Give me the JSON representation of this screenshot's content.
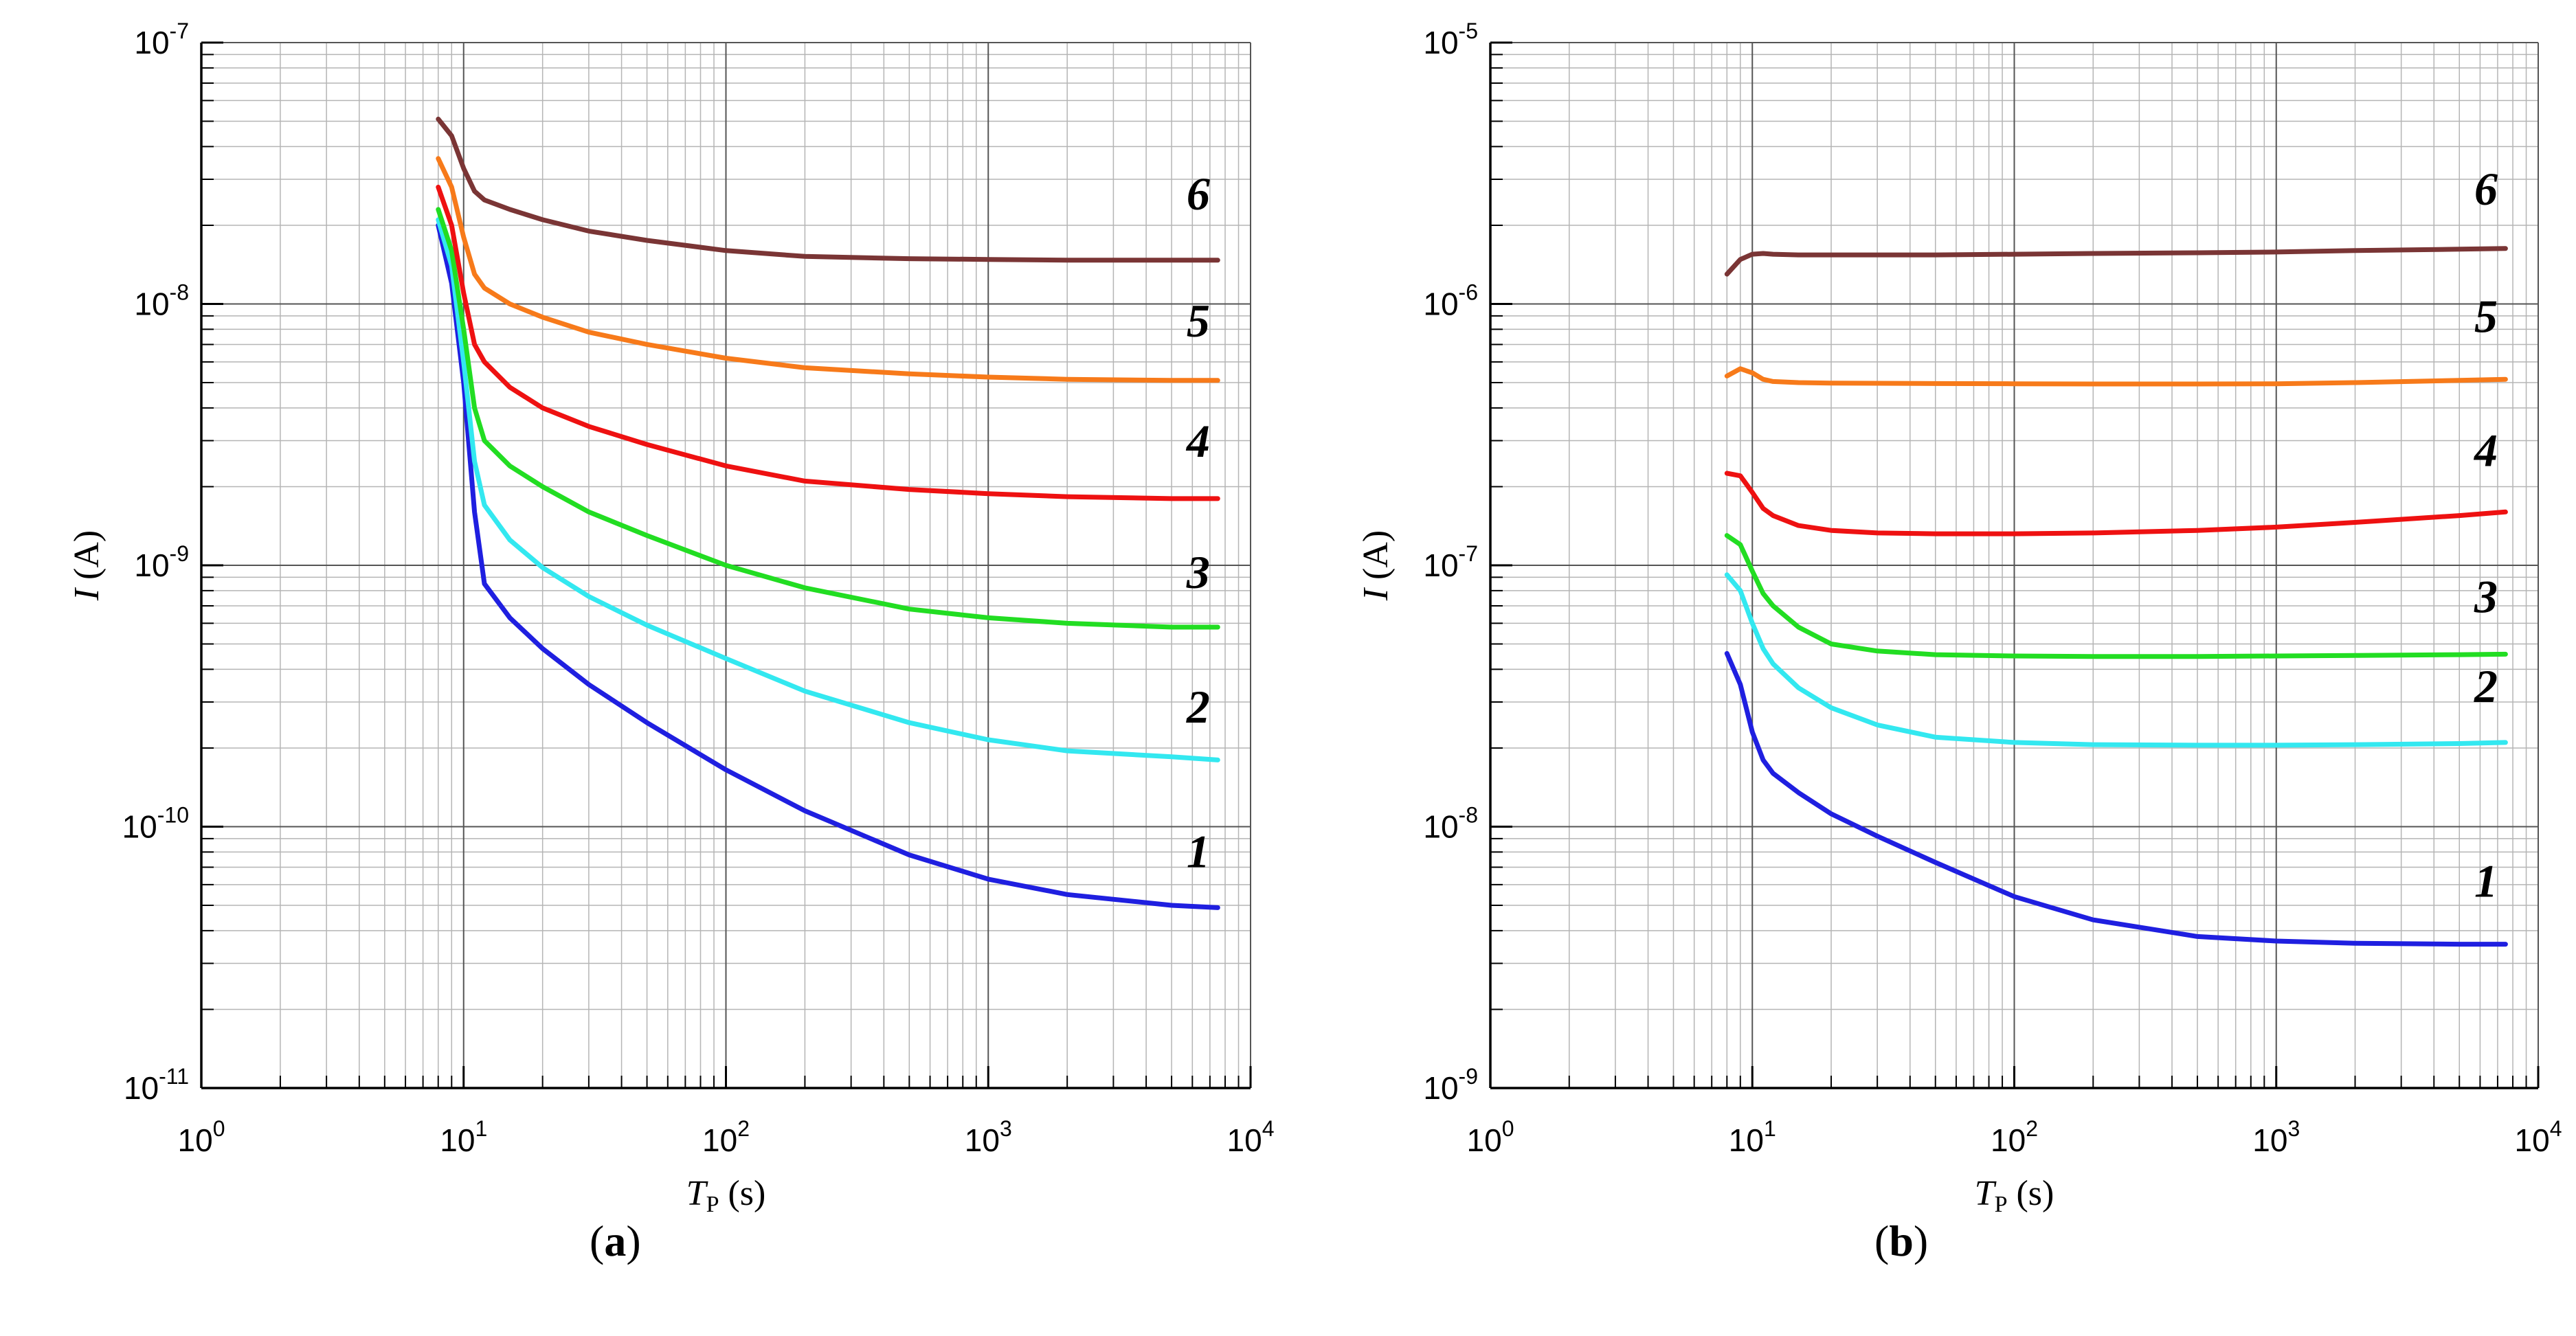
{
  "chart_data": [
    {
      "type": "line",
      "panel_label": "a",
      "xlabel": {
        "main": "T",
        "sub": "P",
        "unit": " (s)"
      },
      "ylabel": {
        "main": "I",
        "unit": " (A)"
      },
      "xscale": "log",
      "yscale": "log",
      "xlim": [
        1,
        10000
      ],
      "ylim": [
        1e-11,
        1e-07
      ],
      "x_ticks": [
        {
          "base": "10",
          "exp": "0"
        },
        {
          "base": "10",
          "exp": "1"
        },
        {
          "base": "10",
          "exp": "2"
        },
        {
          "base": "10",
          "exp": "3"
        },
        {
          "base": "10",
          "exp": "4"
        }
      ],
      "y_ticks": [
        {
          "base": "10",
          "exp": "-11"
        },
        {
          "base": "10",
          "exp": "-10"
        },
        {
          "base": "10",
          "exp": "-9"
        },
        {
          "base": "10",
          "exp": "-8"
        },
        {
          "base": "10",
          "exp": "-7"
        }
      ],
      "grid": true,
      "series": [
        {
          "name": "1",
          "color": "#1f1fe0",
          "x": [
            8,
            9,
            10,
            11,
            12,
            15,
            20,
            30,
            50,
            100,
            200,
            500,
            1000,
            2000,
            5000,
            7500
          ],
          "y": [
            2e-08,
            1.2e-08,
            5e-09,
            1.6e-09,
            8.5e-10,
            6.3e-10,
            4.8e-10,
            3.5e-10,
            2.5e-10,
            1.65e-10,
            1.15e-10,
            7.8e-11,
            6.3e-11,
            5.5e-11,
            5e-11,
            4.9e-11
          ]
        },
        {
          "name": "2",
          "color": "#33e8f0",
          "x": [
            8,
            9,
            10,
            11,
            12,
            15,
            20,
            30,
            50,
            100,
            200,
            500,
            1000,
            2000,
            5000,
            7500
          ],
          "y": [
            2.1e-08,
            1.4e-08,
            6e-09,
            2.5e-09,
            1.7e-09,
            1.25e-09,
            9.8e-10,
            7.6e-10,
            5.9e-10,
            4.4e-10,
            3.3e-10,
            2.5e-10,
            2.15e-10,
            1.95e-10,
            1.85e-10,
            1.8e-10
          ]
        },
        {
          "name": "3",
          "color": "#22dd22",
          "x": [
            8,
            9,
            10,
            11,
            12,
            15,
            20,
            30,
            50,
            100,
            200,
            500,
            1000,
            2000,
            5000,
            7500
          ],
          "y": [
            2.3e-08,
            1.6e-08,
            8e-09,
            4e-09,
            3e-09,
            2.4e-09,
            2e-09,
            1.6e-09,
            1.3e-09,
            1e-09,
            8.2e-10,
            6.8e-10,
            6.3e-10,
            6e-10,
            5.8e-10,
            5.8e-10
          ]
        },
        {
          "name": "4",
          "color": "#ee1111",
          "x": [
            8,
            9,
            10,
            11,
            12,
            15,
            20,
            30,
            50,
            100,
            200,
            500,
            1000,
            2000,
            5000,
            7500
          ],
          "y": [
            2.8e-08,
            2e-08,
            1.1e-08,
            7e-09,
            6e-09,
            4.8e-09,
            4e-09,
            3.4e-09,
            2.9e-09,
            2.4e-09,
            2.1e-09,
            1.95e-09,
            1.88e-09,
            1.83e-09,
            1.8e-09,
            1.8e-09
          ]
        },
        {
          "name": "5",
          "color": "#f77a1a",
          "x": [
            8,
            9,
            10,
            11,
            12,
            15,
            20,
            30,
            50,
            100,
            200,
            500,
            1000,
            2000,
            5000,
            7500
          ],
          "y": [
            3.6e-08,
            2.8e-08,
            1.8e-08,
            1.3e-08,
            1.15e-08,
            1e-08,
            8.9e-09,
            7.8e-09,
            7e-09,
            6.2e-09,
            5.7e-09,
            5.4e-09,
            5.25e-09,
            5.15e-09,
            5.1e-09,
            5.1e-09
          ]
        },
        {
          "name": "6",
          "color": "#7a3535",
          "x": [
            8,
            9,
            10,
            11,
            12,
            15,
            20,
            30,
            50,
            100,
            200,
            500,
            1000,
            2000,
            5000,
            7500
          ],
          "y": [
            5.1e-08,
            4.4e-08,
            3.3e-08,
            2.7e-08,
            2.5e-08,
            2.3e-08,
            2.1e-08,
            1.9e-08,
            1.75e-08,
            1.6e-08,
            1.52e-08,
            1.49e-08,
            1.48e-08,
            1.47e-08,
            1.47e-08,
            1.47e-08
          ]
        }
      ]
    },
    {
      "type": "line",
      "panel_label": "b",
      "xlabel": {
        "main": "T",
        "sub": "P",
        "unit": " (s)"
      },
      "ylabel": {
        "main": "I",
        "unit": " (A)"
      },
      "xscale": "log",
      "yscale": "log",
      "xlim": [
        1,
        10000
      ],
      "ylim": [
        1e-09,
        1e-05
      ],
      "x_ticks": [
        {
          "base": "10",
          "exp": "0"
        },
        {
          "base": "10",
          "exp": "1"
        },
        {
          "base": "10",
          "exp": "2"
        },
        {
          "base": "10",
          "exp": "3"
        },
        {
          "base": "10",
          "exp": "4"
        }
      ],
      "y_ticks": [
        {
          "base": "10",
          "exp": "-9"
        },
        {
          "base": "10",
          "exp": "-8"
        },
        {
          "base": "10",
          "exp": "-7"
        },
        {
          "base": "10",
          "exp": "-6"
        },
        {
          "base": "10",
          "exp": "-5"
        }
      ],
      "grid": true,
      "series": [
        {
          "name": "1",
          "color": "#1f1fe0",
          "x": [
            8,
            9,
            10,
            11,
            12,
            15,
            20,
            30,
            50,
            100,
            200,
            500,
            1000,
            2000,
            5000,
            7500
          ],
          "y": [
            4.6e-08,
            3.5e-08,
            2.3e-08,
            1.8e-08,
            1.6e-08,
            1.35e-08,
            1.12e-08,
            9.2e-09,
            7.3e-09,
            5.4e-09,
            4.4e-09,
            3.8e-09,
            3.65e-09,
            3.58e-09,
            3.55e-09,
            3.55e-09
          ]
        },
        {
          "name": "2",
          "color": "#33e8f0",
          "x": [
            8,
            9,
            10,
            11,
            12,
            15,
            20,
            30,
            50,
            100,
            200,
            500,
            1000,
            2000,
            5000,
            7500
          ],
          "y": [
            9.2e-08,
            8e-08,
            6e-08,
            4.8e-08,
            4.2e-08,
            3.4e-08,
            2.85e-08,
            2.45e-08,
            2.2e-08,
            2.1e-08,
            2.06e-08,
            2.05e-08,
            2.05e-08,
            2.06e-08,
            2.08e-08,
            2.1e-08
          ]
        },
        {
          "name": "3",
          "color": "#22dd22",
          "x": [
            8,
            9,
            10,
            11,
            12,
            15,
            20,
            30,
            50,
            100,
            200,
            500,
            1000,
            2000,
            5000,
            7500
          ],
          "y": [
            1.3e-07,
            1.2e-07,
            9.5e-08,
            7.8e-08,
            7e-08,
            5.8e-08,
            5e-08,
            4.7e-08,
            4.55e-08,
            4.5e-08,
            4.48e-08,
            4.48e-08,
            4.5e-08,
            4.52e-08,
            4.55e-08,
            4.57e-08
          ]
        },
        {
          "name": "4",
          "color": "#ee1111",
          "x": [
            8,
            9,
            10,
            11,
            12,
            15,
            20,
            30,
            50,
            100,
            200,
            500,
            1000,
            2000,
            5000,
            7500
          ],
          "y": [
            2.25e-07,
            2.2e-07,
            1.9e-07,
            1.65e-07,
            1.55e-07,
            1.42e-07,
            1.36e-07,
            1.33e-07,
            1.32e-07,
            1.32e-07,
            1.33e-07,
            1.36e-07,
            1.4e-07,
            1.46e-07,
            1.55e-07,
            1.6e-07
          ]
        },
        {
          "name": "5",
          "color": "#f77a1a",
          "x": [
            8,
            9,
            10,
            11,
            12,
            15,
            20,
            30,
            50,
            100,
            200,
            500,
            1000,
            2000,
            5000,
            7500
          ],
          "y": [
            5.3e-07,
            5.65e-07,
            5.45e-07,
            5.15e-07,
            5.05e-07,
            5e-07,
            4.98e-07,
            4.97e-07,
            4.96e-07,
            4.95e-07,
            4.94e-07,
            4.94e-07,
            4.95e-07,
            5e-07,
            5.1e-07,
            5.15e-07
          ]
        },
        {
          "name": "6",
          "color": "#7a3535",
          "x": [
            8,
            9,
            10,
            11,
            12,
            15,
            20,
            30,
            50,
            100,
            200,
            500,
            1000,
            2000,
            5000,
            7500
          ],
          "y": [
            1.3e-06,
            1.48e-06,
            1.55e-06,
            1.56e-06,
            1.55e-06,
            1.54e-06,
            1.54e-06,
            1.54e-06,
            1.54e-06,
            1.55e-06,
            1.56e-06,
            1.57e-06,
            1.58e-06,
            1.6e-06,
            1.62e-06,
            1.63e-06
          ]
        }
      ]
    }
  ]
}
